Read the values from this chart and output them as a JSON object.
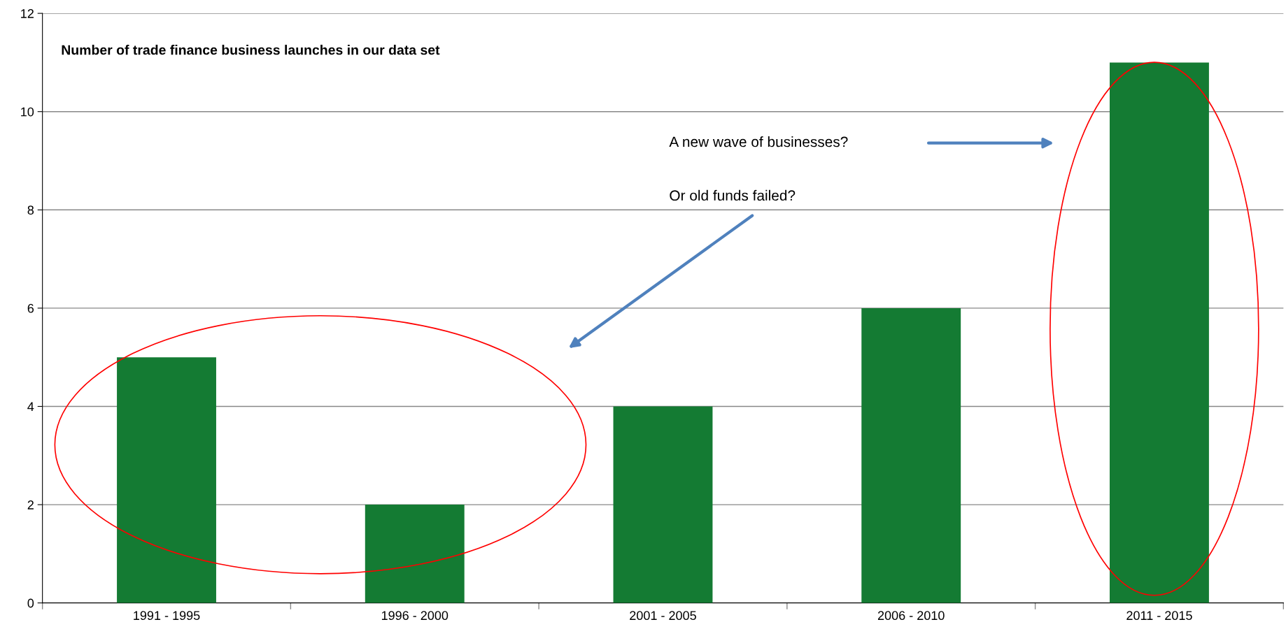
{
  "chart_data": {
    "type": "bar",
    "title": "Number of trade finance business launches in our data set",
    "categories": [
      "1991 - 1995",
      "1996 - 2000",
      "2001 - 2005",
      "2006 - 2010",
      "2011 - 2015"
    ],
    "values": [
      5,
      2,
      4,
      6,
      11
    ],
    "color": "#147b33",
    "ylim": [
      0,
      12
    ],
    "yticks": [
      0,
      2,
      4,
      6,
      8,
      10,
      12
    ],
    "grid": "y",
    "legend": false,
    "annotations": [
      "A new wave of businesses?",
      "Or old funds failed?"
    ]
  }
}
